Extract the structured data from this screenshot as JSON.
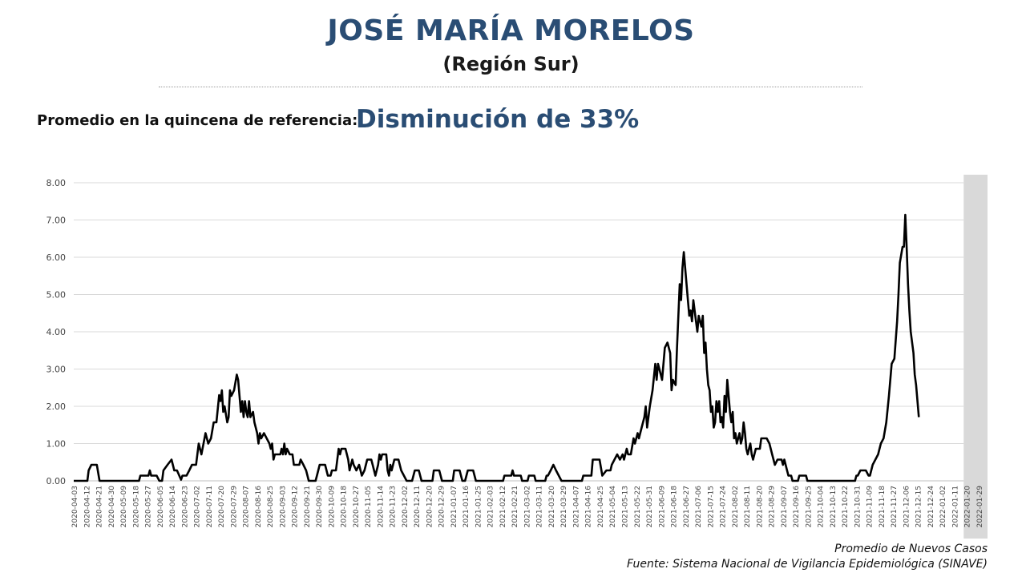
{
  "header": {
    "title": "JOSÉ MARÍA MORELOS",
    "subtitle": "(Región Sur)",
    "reference_label": "Promedio en la quincena de referencia:",
    "reference_value": "Disminución de 33%"
  },
  "footer": {
    "series_label": "Promedio de Nuevos Casos",
    "source": "Fuente: Sistema Nacional de Vigilancia Epidemiológica (SINAVE)"
  },
  "colors": {
    "title": "#2a4d74",
    "line": "#000000",
    "highlight": "#d9d9d9",
    "grid": "#d9d9d9"
  },
  "chart_data": {
    "type": "line",
    "x_start": "2020-04-03",
    "x_end": "2022-02-01",
    "ylim": [
      0,
      8
    ],
    "yticks": [
      "0.00",
      "1.00",
      "2.00",
      "3.00",
      "4.00",
      "5.00",
      "6.00",
      "7.00",
      "8.00"
    ],
    "xticks": [
      "2020-04-03",
      "2020-04-12",
      "2020-04-21",
      "2020-04-30",
      "2020-05-09",
      "2020-05-18",
      "2020-05-27",
      "2020-06-05",
      "2020-06-14",
      "2020-06-23",
      "2020-07-02",
      "2020-07-11",
      "2020-07-20",
      "2020-07-29",
      "2020-08-07",
      "2020-08-16",
      "2020-08-25",
      "2020-09-03",
      "2020-09-12",
      "2020-09-21",
      "2020-09-30",
      "2020-10-09",
      "2020-10-18",
      "2020-10-27",
      "2020-11-05",
      "2020-11-14",
      "2020-11-23",
      "2020-12-02",
      "2020-12-11",
      "2020-12-20",
      "2020-12-29",
      "2021-01-07",
      "2021-01-16",
      "2021-01-25",
      "2021-02-03",
      "2021-02-12",
      "2021-02-21",
      "2021-03-02",
      "2021-03-11",
      "2021-03-20",
      "2021-03-29",
      "2021-04-07",
      "2021-04-16",
      "2021-04-25",
      "2021-05-04",
      "2021-05-13",
      "2021-05-22",
      "2021-05-31",
      "2021-06-09",
      "2021-06-18",
      "2021-06-27",
      "2021-07-06",
      "2021-07-15",
      "2021-07-24",
      "2021-08-02",
      "2021-08-11",
      "2021-08-20",
      "2021-08-29",
      "2021-09-07",
      "2021-09-16",
      "2021-09-25",
      "2021-10-04",
      "2021-10-13",
      "2021-10-22",
      "2021-10-31",
      "2021-11-09",
      "2021-11-18",
      "2021-11-27",
      "2021-12-06",
      "2021-12-15",
      "2021-12-24",
      "2022-01-02",
      "2022-01-11",
      "2022-01-20",
      "2022-01-29"
    ],
    "highlight_range": [
      "2022-01-18",
      "2022-02-01"
    ],
    "grid": "horizontal",
    "points": [
      [
        "2020-04-03",
        0
      ],
      [
        "2020-04-13",
        0
      ],
      [
        "2020-04-14",
        0.28
      ],
      [
        "2020-04-16",
        0.43
      ],
      [
        "2020-04-20",
        0.43
      ],
      [
        "2020-04-22",
        0
      ],
      [
        "2020-05-21",
        0
      ],
      [
        "2020-05-22",
        0.14
      ],
      [
        "2020-05-28",
        0.14
      ],
      [
        "2020-05-29",
        0.28
      ],
      [
        "2020-05-30",
        0.14
      ],
      [
        "2020-06-03",
        0.14
      ],
      [
        "2020-06-05",
        0
      ],
      [
        "2020-06-07",
        0
      ],
      [
        "2020-06-08",
        0.28
      ],
      [
        "2020-06-11",
        0.43
      ],
      [
        "2020-06-14",
        0.57
      ],
      [
        "2020-06-16",
        0.28
      ],
      [
        "2020-06-18",
        0.28
      ],
      [
        "2020-06-21",
        0.03
      ],
      [
        "2020-06-22",
        0.14
      ],
      [
        "2020-06-25",
        0.14
      ],
      [
        "2020-06-27",
        0.28
      ],
      [
        "2020-06-29",
        0.43
      ],
      [
        "2020-07-02",
        0.43
      ],
      [
        "2020-07-04",
        1.0
      ],
      [
        "2020-07-06",
        0.71
      ],
      [
        "2020-07-09",
        1.28
      ],
      [
        "2020-07-11",
        1.0
      ],
      [
        "2020-07-13",
        1.14
      ],
      [
        "2020-07-15",
        1.57
      ],
      [
        "2020-07-17",
        1.57
      ],
      [
        "2020-07-19",
        2.3
      ],
      [
        "2020-07-20",
        2.14
      ],
      [
        "2020-07-21",
        2.43
      ],
      [
        "2020-07-22",
        1.85
      ],
      [
        "2020-07-23",
        2.0
      ],
      [
        "2020-07-25",
        1.57
      ],
      [
        "2020-07-26",
        1.71
      ],
      [
        "2020-07-27",
        2.43
      ],
      [
        "2020-07-28",
        2.28
      ],
      [
        "2020-07-30",
        2.43
      ],
      [
        "2020-08-01",
        2.85
      ],
      [
        "2020-08-02",
        2.71
      ],
      [
        "2020-08-03",
        2.28
      ],
      [
        "2020-08-04",
        1.85
      ],
      [
        "2020-08-05",
        2.14
      ],
      [
        "2020-08-06",
        1.71
      ],
      [
        "2020-08-07",
        2.14
      ],
      [
        "2020-08-08",
        1.85
      ],
      [
        "2020-08-09",
        1.71
      ],
      [
        "2020-08-10",
        2.14
      ],
      [
        "2020-08-11",
        1.71
      ],
      [
        "2020-08-13",
        1.85
      ],
      [
        "2020-08-14",
        1.57
      ],
      [
        "2020-08-16",
        1.28
      ],
      [
        "2020-08-17",
        1.0
      ],
      [
        "2020-08-18",
        1.28
      ],
      [
        "2020-08-19",
        1.14
      ],
      [
        "2020-08-21",
        1.28
      ],
      [
        "2020-08-23",
        1.14
      ],
      [
        "2020-08-25",
        1.0
      ],
      [
        "2020-08-26",
        0.86
      ],
      [
        "2020-08-27",
        1.0
      ],
      [
        "2020-08-28",
        0.57
      ],
      [
        "2020-08-29",
        0.71
      ],
      [
        "2020-09-02",
        0.71
      ],
      [
        "2020-09-03",
        0.86
      ],
      [
        "2020-09-04",
        0.71
      ],
      [
        "2020-09-05",
        1.0
      ],
      [
        "2020-09-06",
        0.71
      ],
      [
        "2020-09-07",
        0.86
      ],
      [
        "2020-09-09",
        0.71
      ],
      [
        "2020-09-11",
        0.71
      ],
      [
        "2020-09-12",
        0.43
      ],
      [
        "2020-09-16",
        0.43
      ],
      [
        "2020-09-17",
        0.57
      ],
      [
        "2020-09-19",
        0.43
      ],
      [
        "2020-09-21",
        0.28
      ],
      [
        "2020-09-23",
        0
      ],
      [
        "2020-09-28",
        0
      ],
      [
        "2020-09-29",
        0.14
      ],
      [
        "2020-10-01",
        0.43
      ],
      [
        "2020-10-05",
        0.43
      ],
      [
        "2020-10-07",
        0.14
      ],
      [
        "2020-10-09",
        0.14
      ],
      [
        "2020-10-10",
        0.28
      ],
      [
        "2020-10-13",
        0.28
      ],
      [
        "2020-10-15",
        0.86
      ],
      [
        "2020-10-16",
        0.71
      ],
      [
        "2020-10-17",
        0.86
      ],
      [
        "2020-10-20",
        0.86
      ],
      [
        "2020-10-22",
        0.57
      ],
      [
        "2020-10-23",
        0.28
      ],
      [
        "2020-10-25",
        0.57
      ],
      [
        "2020-10-26",
        0.43
      ],
      [
        "2020-10-28",
        0.28
      ],
      [
        "2020-10-30",
        0.43
      ],
      [
        "2020-11-01",
        0.14
      ],
      [
        "2020-11-03",
        0.28
      ],
      [
        "2020-11-05",
        0.57
      ],
      [
        "2020-11-08",
        0.57
      ],
      [
        "2020-11-09",
        0.43
      ],
      [
        "2020-11-11",
        0.14
      ],
      [
        "2020-11-13",
        0.43
      ],
      [
        "2020-11-14",
        0.71
      ],
      [
        "2020-11-15",
        0.57
      ],
      [
        "2020-11-16",
        0.71
      ],
      [
        "2020-11-19",
        0.71
      ],
      [
        "2020-11-20",
        0.28
      ],
      [
        "2020-11-21",
        0.14
      ],
      [
        "2020-11-22",
        0.43
      ],
      [
        "2020-11-23",
        0.28
      ],
      [
        "2020-11-25",
        0.57
      ],
      [
        "2020-11-28",
        0.57
      ],
      [
        "2020-11-30",
        0.28
      ],
      [
        "2020-12-02",
        0.14
      ],
      [
        "2020-12-04",
        0
      ],
      [
        "2020-12-08",
        0
      ],
      [
        "2020-12-10",
        0.28
      ],
      [
        "2020-12-13",
        0.28
      ],
      [
        "2020-12-15",
        0
      ],
      [
        "2020-12-23",
        0
      ],
      [
        "2020-12-24",
        0.28
      ],
      [
        "2020-12-28",
        0.28
      ],
      [
        "2020-12-30",
        0
      ],
      [
        "2021-01-07",
        0
      ],
      [
        "2021-01-08",
        0.28
      ],
      [
        "2021-01-12",
        0.28
      ],
      [
        "2021-01-14",
        0
      ],
      [
        "2021-01-16",
        0
      ],
      [
        "2021-01-18",
        0.28
      ],
      [
        "2021-01-22",
        0.28
      ],
      [
        "2021-01-24",
        0
      ],
      [
        "2021-02-13",
        0
      ],
      [
        "2021-02-14",
        0.14
      ],
      [
        "2021-02-19",
        0.14
      ],
      [
        "2021-02-20",
        0.28
      ],
      [
        "2021-02-21",
        0.14
      ],
      [
        "2021-02-26",
        0.14
      ],
      [
        "2021-02-27",
        0
      ],
      [
        "2021-03-03",
        0
      ],
      [
        "2021-03-04",
        0.14
      ],
      [
        "2021-03-08",
        0.14
      ],
      [
        "2021-03-09",
        0
      ],
      [
        "2021-03-16",
        0
      ],
      [
        "2021-03-17",
        0.14
      ],
      [
        "2021-03-18",
        0.14
      ],
      [
        "2021-03-20",
        0.28
      ],
      [
        "2021-03-22",
        0.43
      ],
      [
        "2021-03-24",
        0.28
      ],
      [
        "2021-03-26",
        0.14
      ],
      [
        "2021-03-28",
        0
      ],
      [
        "2021-04-12",
        0
      ],
      [
        "2021-04-13",
        0.14
      ],
      [
        "2021-04-19",
        0.14
      ],
      [
        "2021-04-20",
        0.57
      ],
      [
        "2021-04-25",
        0.57
      ],
      [
        "2021-04-27",
        0.14
      ],
      [
        "2021-04-30",
        0.28
      ],
      [
        "2021-05-03",
        0.28
      ],
      [
        "2021-05-04",
        0.43
      ],
      [
        "2021-05-06",
        0.57
      ],
      [
        "2021-05-08",
        0.71
      ],
      [
        "2021-05-10",
        0.57
      ],
      [
        "2021-05-12",
        0.71
      ],
      [
        "2021-05-13",
        0.57
      ],
      [
        "2021-05-15",
        0.86
      ],
      [
        "2021-05-16",
        0.71
      ],
      [
        "2021-05-18",
        0.71
      ],
      [
        "2021-05-20",
        1.14
      ],
      [
        "2021-05-21",
        1.0
      ],
      [
        "2021-05-23",
        1.28
      ],
      [
        "2021-05-24",
        1.14
      ],
      [
        "2021-05-26",
        1.43
      ],
      [
        "2021-05-28",
        1.71
      ],
      [
        "2021-05-29",
        2.0
      ],
      [
        "2021-05-30",
        1.43
      ],
      [
        "2021-06-01",
        2.0
      ],
      [
        "2021-06-03",
        2.43
      ],
      [
        "2021-06-05",
        3.14
      ],
      [
        "2021-06-06",
        2.71
      ],
      [
        "2021-06-07",
        3.14
      ],
      [
        "2021-06-08",
        3.0
      ],
      [
        "2021-06-10",
        2.71
      ],
      [
        "2021-06-12",
        3.57
      ],
      [
        "2021-06-14",
        3.71
      ],
      [
        "2021-06-16",
        3.43
      ],
      [
        "2021-06-17",
        2.43
      ],
      [
        "2021-06-18",
        2.71
      ],
      [
        "2021-06-20",
        2.57
      ],
      [
        "2021-06-21",
        3.57
      ],
      [
        "2021-06-23",
        5.28
      ],
      [
        "2021-06-24",
        4.85
      ],
      [
        "2021-06-25",
        5.71
      ],
      [
        "2021-06-26",
        6.14
      ],
      [
        "2021-06-27",
        5.71
      ],
      [
        "2021-06-28",
        5.28
      ],
      [
        "2021-06-29",
        4.85
      ],
      [
        "2021-06-30",
        4.43
      ],
      [
        "2021-07-01",
        4.57
      ],
      [
        "2021-07-02",
        4.28
      ],
      [
        "2021-07-03",
        4.85
      ],
      [
        "2021-07-04",
        4.57
      ],
      [
        "2021-07-05",
        4.28
      ],
      [
        "2021-07-06",
        4.0
      ],
      [
        "2021-07-07",
        4.43
      ],
      [
        "2021-07-08",
        4.28
      ],
      [
        "2021-07-09",
        4.14
      ],
      [
        "2021-07-10",
        4.43
      ],
      [
        "2021-07-11",
        3.43
      ],
      [
        "2021-07-12",
        3.71
      ],
      [
        "2021-07-13",
        3.0
      ],
      [
        "2021-07-14",
        2.57
      ],
      [
        "2021-07-15",
        2.43
      ],
      [
        "2021-07-16",
        1.85
      ],
      [
        "2021-07-17",
        2.0
      ],
      [
        "2021-07-18",
        1.43
      ],
      [
        "2021-07-19",
        1.57
      ],
      [
        "2021-07-20",
        2.14
      ],
      [
        "2021-07-21",
        1.85
      ],
      [
        "2021-07-22",
        2.14
      ],
      [
        "2021-07-23",
        1.57
      ],
      [
        "2021-07-24",
        1.71
      ],
      [
        "2021-07-25",
        1.43
      ],
      [
        "2021-07-26",
        2.28
      ],
      [
        "2021-07-27",
        1.85
      ],
      [
        "2021-07-28",
        2.71
      ],
      [
        "2021-07-29",
        2.28
      ],
      [
        "2021-07-30",
        1.85
      ],
      [
        "2021-07-31",
        1.57
      ],
      [
        "2021-08-01",
        1.85
      ],
      [
        "2021-08-02",
        1.14
      ],
      [
        "2021-08-03",
        1.28
      ],
      [
        "2021-08-04",
        1.0
      ],
      [
        "2021-08-05",
        1.14
      ],
      [
        "2021-08-06",
        1.28
      ],
      [
        "2021-08-07",
        1.0
      ],
      [
        "2021-08-08",
        1.14
      ],
      [
        "2021-08-09",
        1.57
      ],
      [
        "2021-08-10",
        1.28
      ],
      [
        "2021-08-11",
        0.86
      ],
      [
        "2021-08-12",
        0.71
      ],
      [
        "2021-08-13",
        0.86
      ],
      [
        "2021-08-14",
        1.0
      ],
      [
        "2021-08-15",
        0.71
      ],
      [
        "2021-08-16",
        0.57
      ],
      [
        "2021-08-18",
        0.86
      ],
      [
        "2021-08-21",
        0.86
      ],
      [
        "2021-08-22",
        1.14
      ],
      [
        "2021-08-26",
        1.14
      ],
      [
        "2021-08-28",
        1.0
      ],
      [
        "2021-08-30",
        0.71
      ],
      [
        "2021-09-01",
        0.43
      ],
      [
        "2021-09-03",
        0.57
      ],
      [
        "2021-09-06",
        0.57
      ],
      [
        "2021-09-07",
        0.43
      ],
      [
        "2021-09-08",
        0.57
      ],
      [
        "2021-09-10",
        0.28
      ],
      [
        "2021-09-11",
        0.14
      ],
      [
        "2021-09-13",
        0.14
      ],
      [
        "2021-09-14",
        0
      ],
      [
        "2021-09-18",
        0
      ],
      [
        "2021-09-19",
        0.14
      ],
      [
        "2021-09-24",
        0.14
      ],
      [
        "2021-09-25",
        0
      ],
      [
        "2021-10-30",
        0
      ],
      [
        "2021-10-31",
        0.14
      ],
      [
        "2021-11-01",
        0.14
      ],
      [
        "2021-11-03",
        0.28
      ],
      [
        "2021-11-07",
        0.28
      ],
      [
        "2021-11-09",
        0.14
      ],
      [
        "2021-11-10",
        0.14
      ],
      [
        "2021-11-12",
        0.43
      ],
      [
        "2021-11-14",
        0.57
      ],
      [
        "2021-11-16",
        0.71
      ],
      [
        "2021-11-18",
        1.0
      ],
      [
        "2021-11-20",
        1.14
      ],
      [
        "2021-11-22",
        1.57
      ],
      [
        "2021-11-24",
        2.28
      ],
      [
        "2021-11-26",
        3.14
      ],
      [
        "2021-11-28",
        3.28
      ],
      [
        "2021-11-30",
        4.28
      ],
      [
        "2021-12-01",
        5.0
      ],
      [
        "2021-12-02",
        5.85
      ],
      [
        "2021-12-04",
        6.28
      ],
      [
        "2021-12-05",
        6.28
      ],
      [
        "2021-12-06",
        7.14
      ],
      [
        "2021-12-07",
        6.28
      ],
      [
        "2021-12-08",
        5.28
      ],
      [
        "2021-12-09",
        4.57
      ],
      [
        "2021-12-10",
        4.0
      ],
      [
        "2021-12-12",
        3.43
      ],
      [
        "2021-12-13",
        2.85
      ],
      [
        "2021-12-14",
        2.57
      ],
      [
        "2021-12-16",
        1.71
      ]
    ]
  }
}
